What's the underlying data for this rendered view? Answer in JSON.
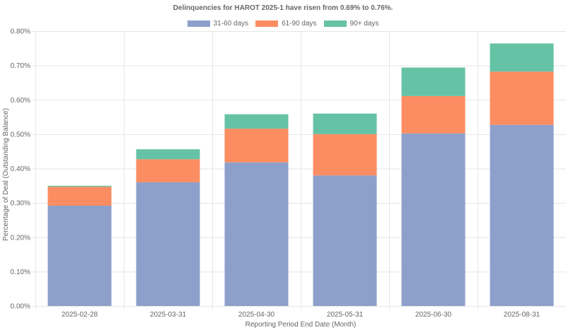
{
  "chart_data": {
    "type": "bar",
    "stacked": true,
    "title": "Delinquencies for HAROT 2025-1 have risen from 0.69% to 0.76%.",
    "xlabel": "Reporting Period End Date (Month)",
    "ylabel": "Percentage of Deal (Outstanding Balance)",
    "categories": [
      "2025-02-28",
      "2025-03-31",
      "2025-04-30",
      "2025-05-31",
      "2025-06-30",
      "2025-08-31"
    ],
    "ylim": [
      0,
      0.8
    ],
    "yticks": [
      0,
      0.1,
      0.2,
      0.3,
      0.4,
      0.5,
      0.6,
      0.7,
      0.8
    ],
    "ytick_labels": [
      "0.00%",
      "0.10%",
      "0.20%",
      "0.30%",
      "0.40%",
      "0.50%",
      "0.60%",
      "0.70%",
      "0.80%"
    ],
    "series": [
      {
        "name": "31-60 days",
        "color": "#8da0cb",
        "values": [
          0.292,
          0.36,
          0.418,
          0.38,
          0.502,
          0.527
        ]
      },
      {
        "name": "61-90 days",
        "color": "#fc8d62",
        "values": [
          0.055,
          0.067,
          0.098,
          0.12,
          0.109,
          0.155
        ]
      },
      {
        "name": "90+ days",
        "color": "#66c2a5",
        "values": [
          0.003,
          0.029,
          0.042,
          0.06,
          0.083,
          0.082
        ]
      }
    ],
    "grid": true,
    "legend_position": "top-center"
  }
}
